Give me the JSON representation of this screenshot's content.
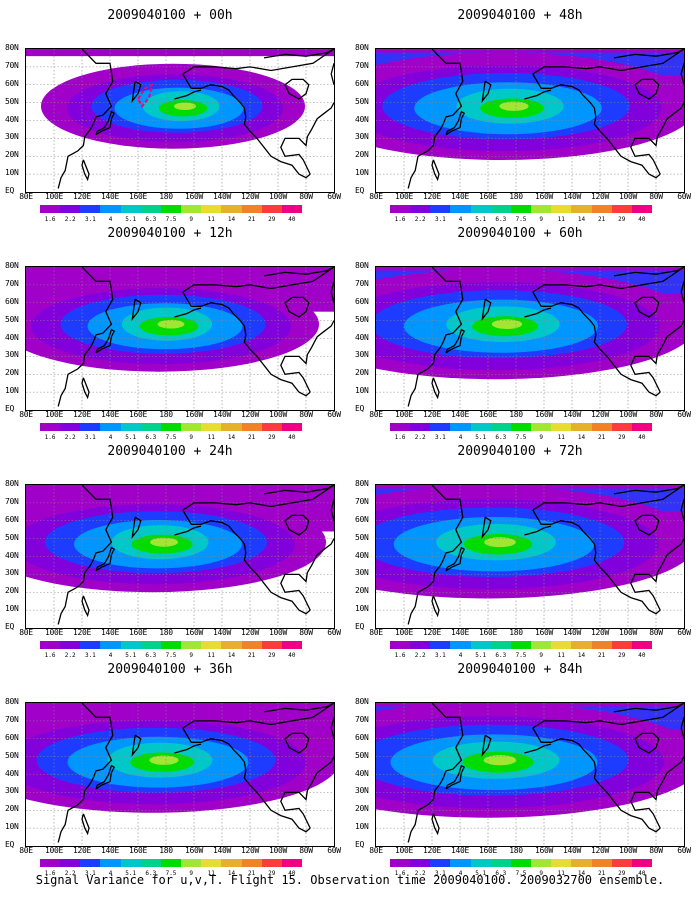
{
  "panels": [
    {
      "title": "2009040100 + 00h",
      "col": 0,
      "row": 0,
      "intensity": 0.25,
      "spread": 0.3,
      "center_lon": 165
    },
    {
      "title": "2009040100 + 48h",
      "col": 1,
      "row": 0,
      "intensity": 0.55,
      "spread": 0.75,
      "center_lon": 150
    },
    {
      "title": "2009040100 + 12h",
      "col": 0,
      "row": 1,
      "intensity": 0.45,
      "spread": 0.5,
      "center_lon": 155
    },
    {
      "title": "2009040100 + 60h",
      "col": 1,
      "row": 1,
      "intensity": 0.6,
      "spread": 0.8,
      "center_lon": 145
    },
    {
      "title": "2009040100 + 24h",
      "col": 0,
      "row": 2,
      "intensity": 0.5,
      "spread": 0.6,
      "center_lon": 150
    },
    {
      "title": "2009040100 + 72h",
      "col": 1,
      "row": 2,
      "intensity": 0.65,
      "spread": 0.85,
      "center_lon": 140
    },
    {
      "title": "2009040100 + 36h",
      "col": 0,
      "row": 3,
      "intensity": 0.55,
      "spread": 0.7,
      "center_lon": 150
    },
    {
      "title": "2009040100 + 84h",
      "col": 1,
      "row": 3,
      "intensity": 0.7,
      "spread": 0.9,
      "center_lon": 140
    }
  ],
  "lat_labels": [
    "80N",
    "70N",
    "60N",
    "50N",
    "40N",
    "30N",
    "20N",
    "10N",
    "EQ"
  ],
  "lon_labels": [
    "80E",
    "100E",
    "120E",
    "140E",
    "160E",
    "180",
    "160W",
    "140W",
    "120W",
    "100W",
    "80W",
    "60W"
  ],
  "colorbar": {
    "labels": [
      "1.6",
      "2.2",
      "3.1",
      "4",
      "5.1",
      "6.3",
      "7.5",
      "9",
      "11",
      "14",
      "21",
      "29",
      "40"
    ],
    "colors": [
      "#a000c8",
      "#8200dc",
      "#1e3cff",
      "#0096ff",
      "#00c8c8",
      "#00d28c",
      "#00dc00",
      "#a0e632",
      "#e6dc32",
      "#e6af2d",
      "#f08228",
      "#fa3c3c",
      "#f00082"
    ]
  },
  "footer": "Signal Variance for u,v,T. Flight 15. Observation time 2009040100. 2009032700 ensemble."
}
